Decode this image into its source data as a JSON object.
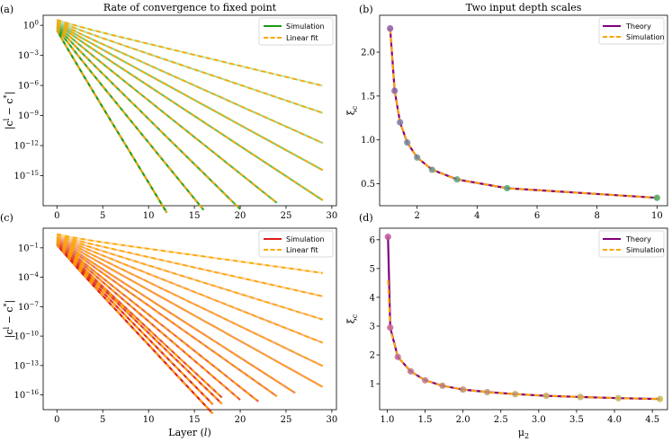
{
  "chart_data": [
    {
      "id": "a",
      "type": "line",
      "panel_label": "(a)",
      "title": "Rate of convergence to fixed point",
      "xlabel": "",
      "ylabel": "|c^l − c*|",
      "yscale": "log",
      "xlim": [
        -1.5,
        30.5
      ],
      "ylim_log10": [
        -18.0,
        1.0
      ],
      "xticks": [
        0,
        5,
        10,
        15,
        20,
        25,
        30
      ],
      "xtick_labels": [
        "0",
        "5",
        "10",
        "15",
        "20",
        "25",
        "30"
      ],
      "yticks_log10": [
        0,
        -3,
        -6,
        -9,
        -12,
        -15
      ],
      "ytick_labels": [
        "10^0",
        "10^-3",
        "10^-6",
        "10^-9",
        "10^-12",
        "10^-15"
      ],
      "legend": {
        "position": "top-right",
        "entries": [
          "Simulation",
          "Linear fit"
        ]
      },
      "color_scale": [
        "#1a9a1a",
        "#c4eab4"
      ],
      "fit_color": "#ffa500",
      "series": [
        {
          "end": 12,
          "slope_log10": -1.5,
          "intercept_log10": -0.7
        },
        {
          "end": 16,
          "slope_log10": -1.12,
          "intercept_log10": -0.5
        },
        {
          "end": 20,
          "slope_log10": -0.9,
          "intercept_log10": -0.35
        },
        {
          "end": 24,
          "slope_log10": -0.73,
          "intercept_log10": -0.2
        },
        {
          "end": 29,
          "slope_log10": -0.6,
          "intercept_log10": -0.05
        },
        {
          "end": 29,
          "slope_log10": -0.5,
          "intercept_log10": 0.05
        },
        {
          "end": 29,
          "slope_log10": -0.41,
          "intercept_log10": 0.15
        },
        {
          "end": 29,
          "slope_log10": -0.31,
          "intercept_log10": 0.25
        },
        {
          "end": 29,
          "slope_log10": -0.22,
          "intercept_log10": 0.35
        }
      ]
    },
    {
      "id": "b",
      "type": "line",
      "panel_label": "(b)",
      "title": "Two input depth scales",
      "xlabel": "",
      "ylabel": "ξ_c",
      "xlim": [
        0.75,
        10.35
      ],
      "ylim": [
        0.25,
        2.42
      ],
      "xticks": [
        2,
        4,
        6,
        8,
        10
      ],
      "xtick_labels": [
        "2",
        "4",
        "6",
        "8",
        "10"
      ],
      "yticks": [
        0.5,
        1.0,
        1.5,
        2.0
      ],
      "ytick_labels": [
        "0.5",
        "1.0",
        "1.5",
        "2.0"
      ],
      "legend": {
        "position": "top-right",
        "entries": [
          "Theory",
          "Simulation"
        ]
      },
      "theory_color": "#800080",
      "simulation_color": "#ffa500",
      "x": [
        1.1,
        1.25,
        1.43,
        1.67,
        2.0,
        2.5,
        3.33,
        5.0,
        10.0
      ],
      "theory": [
        2.27,
        1.56,
        1.2,
        0.97,
        0.8,
        0.66,
        0.55,
        0.45,
        0.34
      ],
      "simulation": [
        2.27,
        1.56,
        1.2,
        0.97,
        0.8,
        0.66,
        0.55,
        0.45,
        0.34
      ],
      "marker_colors": [
        "#8e5aa8",
        "#8a68a8",
        "#7f7da8",
        "#7a8aa0",
        "#748f95",
        "#6e9a88",
        "#60a080",
        "#58a678",
        "#4aa85c"
      ]
    },
    {
      "id": "c",
      "type": "line",
      "panel_label": "(c)",
      "title": "",
      "xlabel": "Layer (l)",
      "ylabel": "|c^l − c*|",
      "yscale": "log",
      "xlim": [
        -1.5,
        30.5
      ],
      "ylim_log10": [
        -17.5,
        1.0
      ],
      "xticks": [
        0,
        5,
        10,
        15,
        20,
        25,
        30
      ],
      "xtick_labels": [
        "0",
        "5",
        "10",
        "15",
        "20",
        "25",
        "30"
      ],
      "yticks_log10": [
        -1,
        -4,
        -7,
        -10,
        -13,
        -16
      ],
      "ytick_labels": [
        "10^-1",
        "10^-4",
        "10^-7",
        "10^-10",
        "10^-13",
        "10^-16"
      ],
      "legend": {
        "position": "top-right",
        "entries": [
          "Simulation",
          "Linear fit"
        ]
      },
      "color_scale": [
        "#dd1c1c",
        "#fcdfa8"
      ],
      "fit_color": "#ffa500",
      "series": [
        {
          "end": 17,
          "slope_log10": -1.0,
          "intercept_log10": -0.9
        },
        {
          "end": 17,
          "slope_log10": -0.95,
          "intercept_log10": -0.8
        },
        {
          "end": 18,
          "slope_log10": -0.9,
          "intercept_log10": -0.7
        },
        {
          "end": 18,
          "slope_log10": -0.87,
          "intercept_log10": -0.6
        },
        {
          "end": 20,
          "slope_log10": -0.8,
          "intercept_log10": -0.5
        },
        {
          "end": 22,
          "slope_log10": -0.74,
          "intercept_log10": -0.4
        },
        {
          "end": 24,
          "slope_log10": -0.66,
          "intercept_log10": -0.3
        },
        {
          "end": 26,
          "slope_log10": -0.6,
          "intercept_log10": -0.2
        },
        {
          "end": 29,
          "slope_log10": -0.52,
          "intercept_log10": -0.1
        },
        {
          "end": 29,
          "slope_log10": -0.45,
          "intercept_log10": 0.0
        },
        {
          "end": 29,
          "slope_log10": -0.37,
          "intercept_log10": 0.05
        },
        {
          "end": 29,
          "slope_log10": -0.29,
          "intercept_log10": 0.1
        },
        {
          "end": 29,
          "slope_log10": -0.21,
          "intercept_log10": 0.15
        },
        {
          "end": 29,
          "slope_log10": -0.13,
          "intercept_log10": 0.2
        }
      ]
    },
    {
      "id": "d",
      "type": "line",
      "panel_label": "(d)",
      "title": "",
      "xlabel": "μ2",
      "ylabel": "ξ_c",
      "xlim": [
        0.9,
        4.7
      ],
      "ylim": [
        0.1,
        6.4
      ],
      "xticks": [
        1.0,
        1.5,
        2.0,
        2.5,
        3.0,
        3.5,
        4.0,
        4.5
      ],
      "xtick_labels": [
        "1.0",
        "1.5",
        "2.0",
        "2.5",
        "3.0",
        "3.5",
        "4.0",
        "4.5"
      ],
      "yticks": [
        1,
        2,
        3,
        4,
        5,
        6
      ],
      "ytick_labels": [
        "1",
        "2",
        "3",
        "4",
        "5",
        "6"
      ],
      "legend": {
        "position": "top-right",
        "entries": [
          "Theory",
          "Simulation"
        ]
      },
      "theory_color": "#800080",
      "simulation_color": "#ffa500",
      "x": [
        1.01,
        1.04,
        1.14,
        1.31,
        1.5,
        1.73,
        2.0,
        2.32,
        2.69,
        3.1,
        3.55,
        4.05,
        4.6
      ],
      "theory": [
        6.1,
        2.95,
        1.93,
        1.43,
        1.12,
        0.93,
        0.8,
        0.71,
        0.64,
        0.58,
        0.54,
        0.5,
        0.47
      ],
      "simulation": [
        4.6,
        2.9,
        1.93,
        1.43,
        1.12,
        0.93,
        0.8,
        0.71,
        0.64,
        0.58,
        0.54,
        0.5,
        0.47
      ],
      "marker_colors": [
        "#c0569a",
        "#c4609a",
        "#c26a90",
        "#c07488",
        "#c07e80",
        "#c08878",
        "#c29070",
        "#c49868",
        "#c6a060",
        "#c8a85c",
        "#caae58",
        "#ccb454",
        "#ceba50"
      ]
    }
  ]
}
